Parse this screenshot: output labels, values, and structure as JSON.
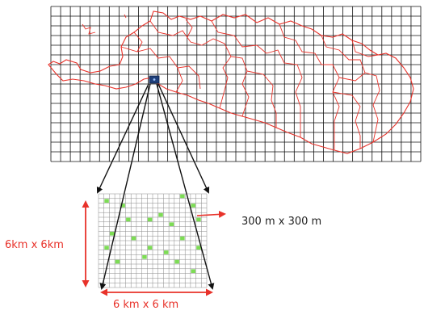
{
  "labels": {
    "side_size": "6km x 6km",
    "bottom_size": "6 km x 6 km",
    "cell_size": "300 m x 300 m"
  },
  "colors": {
    "boundary": "#e8322a",
    "grid": "#111111",
    "highlight_cell": "#1f3f7a",
    "fine_grid": "#8a8a8a",
    "sample_cell": "#7ddc55",
    "arrow_red": "#e8322a",
    "arrow_black": "#111111"
  },
  "coarse_grid": {
    "columns": 38,
    "rows": 16
  },
  "fine_grid": {
    "columns": 20,
    "rows": 20
  },
  "marker_count": 20
}
